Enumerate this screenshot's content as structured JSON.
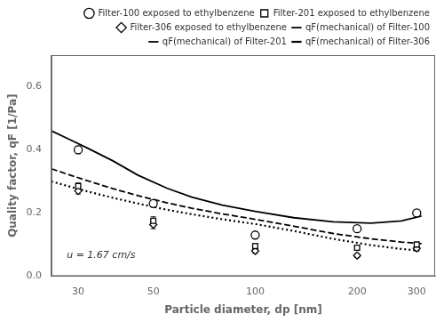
{
  "chart_data": {
    "type": "scatter",
    "xlabel": "Particle diameter, dp [nm]",
    "ylabel": "Quality factor, qF [1/Pa]",
    "annotation": "u = 1.67 cm/s",
    "log": "x",
    "grid": false,
    "legend": "upper right",
    "xlim": [
      25,
      340
    ],
    "xticks": [
      30,
      50,
      100,
      200,
      300
    ],
    "ylim": [
      0.0,
      0.7
    ],
    "yticks": [
      {
        "value": 0.0,
        "label": "0.0"
      },
      0.2,
      0.4,
      0.6
    ],
    "series": [
      {
        "name": "Filter-100 exposed to ethylbenzene",
        "type": "scatter",
        "marker": "circle",
        "color": "#000000",
        "x": [
          30,
          50,
          100,
          200,
          300
        ],
        "values": [
          0.4,
          0.23,
          0.13,
          0.15,
          0.2
        ],
        "error": [
          0.012,
          0.01,
          0.01,
          0.01,
          0.01
        ]
      },
      {
        "name": "Filter-201 exposed to ethylbenzene",
        "type": "scatter",
        "marker": "square",
        "color": "#000000",
        "x": [
          30,
          50,
          100,
          200,
          300
        ],
        "values": [
          0.285,
          0.175,
          0.095,
          0.09,
          0.1
        ],
        "error": [
          0.01,
          0.013,
          0.008,
          0.008,
          0.008
        ]
      },
      {
        "name": "Filter-306 exposed to ethylbenzene",
        "type": "scatter",
        "marker": "diamond",
        "color": "#000000",
        "x": [
          30,
          50,
          100,
          200,
          300
        ],
        "values": [
          0.27,
          0.163,
          0.08,
          0.065,
          0.088
        ],
        "error": [
          0.01,
          0.013,
          0.008,
          0.006,
          0.008
        ]
      },
      {
        "name": "qF(mechanical) of Filter-100",
        "type": "line",
        "line_style": "solid",
        "color": "#000000",
        "x": [
          25,
          28,
          32,
          38,
          45,
          55,
          65,
          80,
          100,
          130,
          170,
          220,
          270,
          310
        ],
        "values": [
          0.46,
          0.435,
          0.405,
          0.365,
          0.32,
          0.278,
          0.25,
          0.225,
          0.205,
          0.185,
          0.172,
          0.168,
          0.175,
          0.19
        ]
      },
      {
        "name": "qF(mechanical) of Filter-201",
        "type": "line",
        "line_style": "dashed",
        "color": "#000000",
        "x": [
          25,
          28,
          32,
          38,
          45,
          55,
          65,
          80,
          100,
          130,
          170,
          220,
          270,
          310
        ],
        "values": [
          0.34,
          0.322,
          0.302,
          0.277,
          0.255,
          0.232,
          0.215,
          0.197,
          0.18,
          0.158,
          0.135,
          0.118,
          0.108,
          0.103
        ]
      },
      {
        "name": "qF(mechanical) of Filter-306",
        "type": "line",
        "line_style": "dotted",
        "color": "#000000",
        "x": [
          25,
          28,
          32,
          38,
          45,
          55,
          65,
          80,
          100,
          130,
          170,
          220,
          270,
          310
        ],
        "values": [
          0.3,
          0.285,
          0.268,
          0.248,
          0.23,
          0.21,
          0.196,
          0.18,
          0.165,
          0.143,
          0.118,
          0.098,
          0.086,
          0.08
        ]
      }
    ]
  }
}
